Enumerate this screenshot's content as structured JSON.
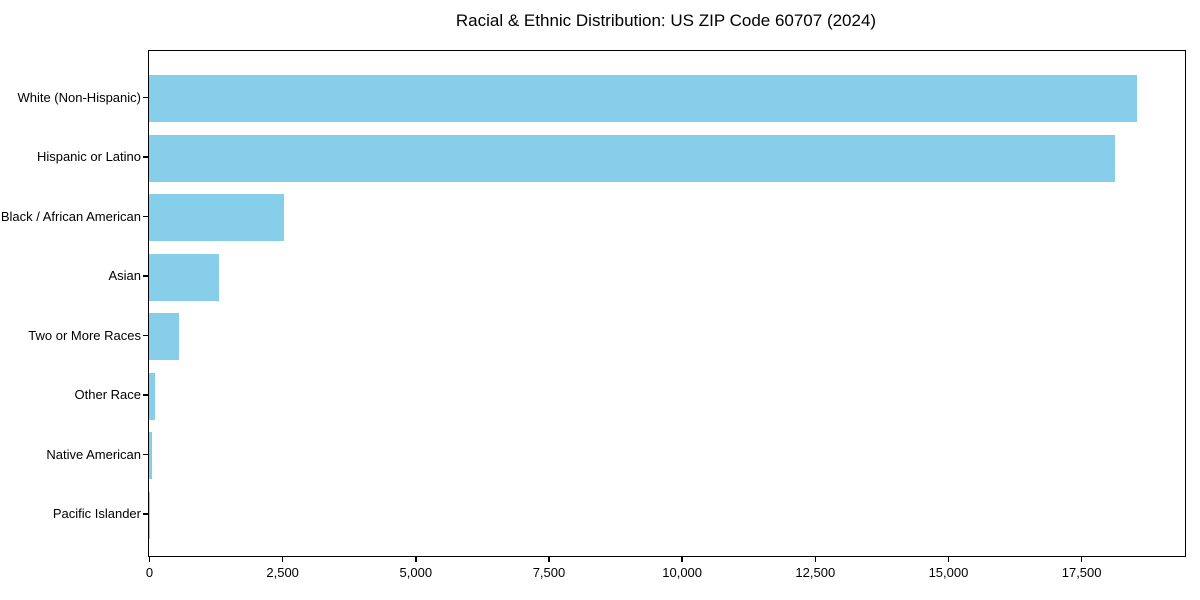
{
  "chart_data": {
    "type": "bar",
    "orientation": "horizontal",
    "title": "Racial & Ethnic Distribution: US ZIP Code 60707 (2024)",
    "categories": [
      "White (Non-Hispanic)",
      "Hispanic or Latino",
      "Black / African American",
      "Asian",
      "Two or More Races",
      "Other Race",
      "Native American",
      "Pacific Islander"
    ],
    "values": [
      18550,
      18140,
      2540,
      1315,
      560,
      120,
      60,
      10
    ],
    "bar_color": "#87CEEB",
    "xlabel": "",
    "ylabel": "",
    "xlim": [
      0,
      19450
    ],
    "x_ticks": [
      0,
      2500,
      5000,
      7500,
      10000,
      12500,
      15000,
      17500
    ],
    "x_tick_labels": [
      "0",
      "2,500",
      "5,000",
      "7,500",
      "10,000",
      "12,500",
      "15,000",
      "17,500"
    ],
    "legend": "none",
    "grid": false,
    "frame_color": "#000000",
    "background_color": "#ffffff"
  }
}
